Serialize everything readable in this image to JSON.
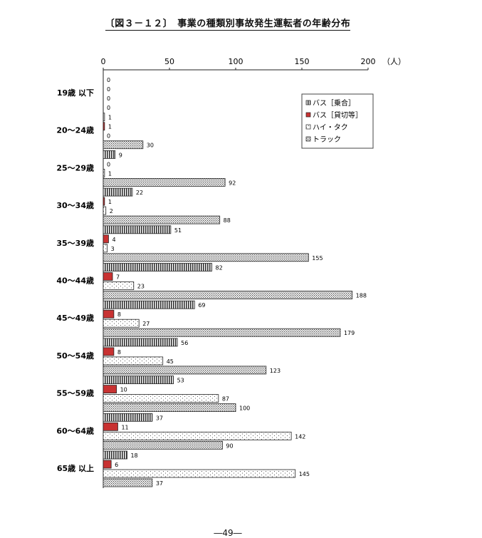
{
  "page": {
    "title": "〔図３－１２〕　事業の種類別事故発生運転者の年齢分布",
    "page_number": "―49―"
  },
  "colors": {
    "bus_charter": "#c83232",
    "bar_stroke": "#222222"
  },
  "chart_data": {
    "type": "bar",
    "orientation": "horizontal",
    "title": "〔図３－１２〕　事業の種類別事故発生運転者の年齢分布",
    "axis_unit": "（人）",
    "xlim": [
      0,
      200
    ],
    "xticks": [
      0,
      50,
      100,
      150,
      200
    ],
    "legend_position": "top-right",
    "categories": [
      "19歳 以下",
      "20～24歳",
      "25～29歳",
      "30～34歳",
      "35～39歳",
      "40～44歳",
      "45～49歳",
      "50～54歳",
      "55～59歳",
      "60～64歳",
      "65歳 以上"
    ],
    "series": [
      {
        "name": "バス［乗合］",
        "pattern": "vertical-stripes",
        "values": [
          0,
          1,
          9,
          22,
          51,
          82,
          69,
          56,
          53,
          37,
          18
        ]
      },
      {
        "name": "バス［貸切等］",
        "pattern": "solid-red",
        "values": [
          0,
          1,
          0,
          1,
          4,
          7,
          8,
          8,
          10,
          11,
          6
        ]
      },
      {
        "name": "ハイ・タク",
        "pattern": "sparse-dots",
        "values": [
          0,
          0,
          1,
          2,
          3,
          23,
          27,
          45,
          87,
          142,
          145
        ]
      },
      {
        "name": "トラック",
        "pattern": "dense-dots",
        "values": [
          0,
          30,
          92,
          88,
          155,
          188,
          179,
          123,
          100,
          90,
          37
        ]
      }
    ]
  }
}
